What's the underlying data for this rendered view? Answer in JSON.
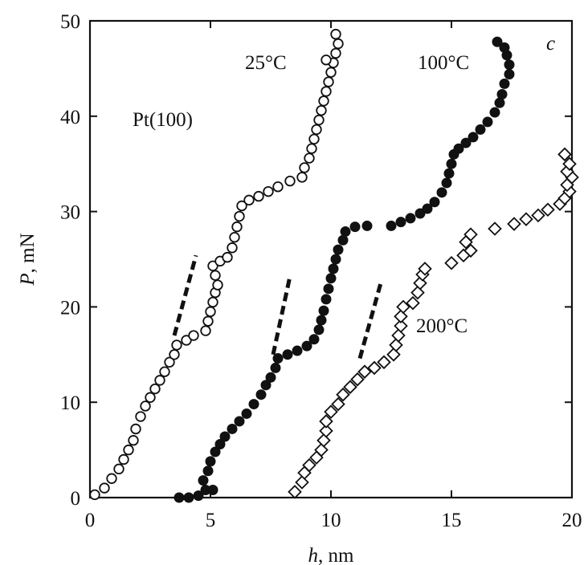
{
  "chart_data": {
    "type": "scatter",
    "panel_label": "c",
    "xlabel": {
      "symbol": "h",
      "unit": ", nm"
    },
    "ylabel": {
      "symbol": "P",
      "unit": ", mN"
    },
    "xlim": [
      0,
      20
    ],
    "ylim": [
      0,
      50
    ],
    "x_ticks": [
      "0",
      "5",
      "10",
      "15",
      "20"
    ],
    "y_ticks": [
      "0",
      "10",
      "20",
      "30",
      "40",
      "50"
    ],
    "grid": false,
    "annotations": {
      "material": "Pt(100)",
      "t25": "25°C",
      "t100": "100°C",
      "t200": "200°C"
    },
    "series": [
      {
        "label": "25°C",
        "marker": "open-circle",
        "points": [
          [
            0.2,
            0.3
          ],
          [
            0.6,
            1.0
          ],
          [
            0.9,
            2.0
          ],
          [
            1.2,
            3.0
          ],
          [
            1.4,
            4.0
          ],
          [
            1.6,
            5.0
          ],
          [
            1.8,
            6.0
          ],
          [
            1.9,
            7.2
          ],
          [
            2.1,
            8.5
          ],
          [
            2.3,
            9.6
          ],
          [
            2.5,
            10.5
          ],
          [
            2.7,
            11.4
          ],
          [
            2.9,
            12.3
          ],
          [
            3.1,
            13.2
          ],
          [
            3.3,
            14.2
          ],
          [
            3.5,
            15.0
          ],
          [
            3.6,
            16.0
          ],
          [
            4.0,
            16.5
          ],
          [
            4.3,
            17.0
          ],
          [
            4.8,
            17.5
          ],
          [
            4.9,
            18.5
          ],
          [
            5.0,
            19.5
          ],
          [
            5.1,
            20.5
          ],
          [
            5.2,
            21.5
          ],
          [
            5.3,
            22.3
          ],
          [
            5.2,
            23.3
          ],
          [
            5.1,
            24.3
          ],
          [
            5.4,
            24.8
          ],
          [
            5.7,
            25.2
          ],
          [
            5.9,
            26.2
          ],
          [
            6.0,
            27.3
          ],
          [
            6.1,
            28.4
          ],
          [
            6.2,
            29.5
          ],
          [
            6.3,
            30.6
          ],
          [
            6.6,
            31.2
          ],
          [
            7.0,
            31.6
          ],
          [
            7.4,
            32.1
          ],
          [
            7.8,
            32.6
          ],
          [
            8.3,
            33.2
          ],
          [
            8.8,
            33.6
          ],
          [
            8.9,
            34.6
          ],
          [
            9.1,
            35.6
          ],
          [
            9.2,
            36.6
          ],
          [
            9.3,
            37.6
          ],
          [
            9.4,
            38.6
          ],
          [
            9.5,
            39.6
          ],
          [
            9.6,
            40.6
          ],
          [
            9.7,
            41.6
          ],
          [
            9.8,
            42.6
          ],
          [
            9.9,
            43.6
          ],
          [
            10.0,
            44.6
          ],
          [
            10.1,
            45.6
          ],
          [
            9.8,
            45.9
          ],
          [
            10.2,
            46.6
          ],
          [
            10.3,
            47.6
          ],
          [
            10.2,
            48.6
          ]
        ],
        "dashed_line": [
          [
            3.5,
            17.0
          ],
          [
            4.4,
            25.4
          ]
        ]
      },
      {
        "label": "100°C",
        "marker": "filled-circle",
        "points": [
          [
            3.7,
            0.0
          ],
          [
            4.1,
            0.0
          ],
          [
            4.5,
            0.2
          ],
          [
            4.8,
            0.8
          ],
          [
            5.1,
            0.8
          ],
          [
            4.7,
            1.8
          ],
          [
            4.9,
            2.8
          ],
          [
            5.0,
            3.8
          ],
          [
            5.2,
            4.8
          ],
          [
            5.4,
            5.6
          ],
          [
            5.6,
            6.4
          ],
          [
            5.9,
            7.2
          ],
          [
            6.2,
            8.0
          ],
          [
            6.5,
            8.8
          ],
          [
            6.8,
            9.8
          ],
          [
            7.1,
            10.8
          ],
          [
            7.3,
            11.8
          ],
          [
            7.5,
            12.6
          ],
          [
            7.7,
            13.6
          ],
          [
            7.8,
            14.6
          ],
          [
            8.2,
            15.0
          ],
          [
            8.6,
            15.4
          ],
          [
            9.0,
            15.9
          ],
          [
            9.3,
            16.6
          ],
          [
            9.5,
            17.6
          ],
          [
            9.6,
            18.6
          ],
          [
            9.7,
            19.6
          ],
          [
            9.8,
            20.8
          ],
          [
            9.9,
            21.9
          ],
          [
            10.0,
            23.0
          ],
          [
            10.1,
            24.0
          ],
          [
            10.2,
            25.0
          ],
          [
            10.3,
            26.0
          ],
          [
            10.5,
            27.0
          ],
          [
            10.6,
            27.9
          ],
          [
            11.0,
            28.4
          ],
          [
            11.5,
            28.5
          ],
          [
            12.5,
            28.5
          ],
          [
            12.9,
            28.9
          ],
          [
            13.3,
            29.3
          ],
          [
            13.7,
            29.8
          ],
          [
            14.0,
            30.3
          ],
          [
            14.3,
            31.0
          ],
          [
            14.6,
            32.0
          ],
          [
            14.8,
            33.0
          ],
          [
            14.9,
            34.0
          ],
          [
            15.0,
            35.0
          ],
          [
            15.1,
            36.0
          ],
          [
            15.3,
            36.6
          ],
          [
            15.6,
            37.2
          ],
          [
            15.9,
            37.8
          ],
          [
            16.2,
            38.6
          ],
          [
            16.5,
            39.4
          ],
          [
            16.8,
            40.4
          ],
          [
            17.0,
            41.4
          ],
          [
            17.1,
            42.3
          ],
          [
            17.2,
            43.4
          ],
          [
            17.4,
            44.4
          ],
          [
            17.4,
            45.4
          ],
          [
            17.3,
            46.4
          ],
          [
            17.2,
            47.2
          ],
          [
            16.9,
            47.8
          ]
        ],
        "dashed_line": [
          [
            7.6,
            15.0
          ],
          [
            8.3,
            23.2
          ]
        ]
      },
      {
        "label": "200°C",
        "marker": "open-diamond",
        "points": [
          [
            8.5,
            0.6
          ],
          [
            8.8,
            1.6
          ],
          [
            8.9,
            2.6
          ],
          [
            9.1,
            3.4
          ],
          [
            9.4,
            4.2
          ],
          [
            9.6,
            5.0
          ],
          [
            9.7,
            6.0
          ],
          [
            9.8,
            7.0
          ],
          [
            9.8,
            8.0
          ],
          [
            10.0,
            9.0
          ],
          [
            10.3,
            9.8
          ],
          [
            10.5,
            10.8
          ],
          [
            10.8,
            11.6
          ],
          [
            11.1,
            12.4
          ],
          [
            11.4,
            13.2
          ],
          [
            11.8,
            13.6
          ],
          [
            12.2,
            14.2
          ],
          [
            12.6,
            15.0
          ],
          [
            12.7,
            16.0
          ],
          [
            12.8,
            17.0
          ],
          [
            12.9,
            18.0
          ],
          [
            12.9,
            19.0
          ],
          [
            13.0,
            20.0
          ],
          [
            13.4,
            20.4
          ],
          [
            13.6,
            21.5
          ],
          [
            13.7,
            22.5
          ],
          [
            13.8,
            23.4
          ],
          [
            13.9,
            24.0
          ],
          [
            15.0,
            24.6
          ],
          [
            15.5,
            25.4
          ],
          [
            15.8,
            25.9
          ],
          [
            15.6,
            26.8
          ],
          [
            15.8,
            27.6
          ],
          [
            16.8,
            28.2
          ],
          [
            17.6,
            28.7
          ],
          [
            18.1,
            29.2
          ],
          [
            18.6,
            29.6
          ],
          [
            19.0,
            30.2
          ],
          [
            19.5,
            30.8
          ],
          [
            19.7,
            31.4
          ],
          [
            19.9,
            32.1
          ],
          [
            19.8,
            32.8
          ],
          [
            20.0,
            33.6
          ],
          [
            19.8,
            34.2
          ],
          [
            19.9,
            35.0
          ],
          [
            19.7,
            36.0
          ]
        ],
        "dashed_line": [
          [
            11.2,
            14.6
          ],
          [
            12.1,
            22.8
          ]
        ]
      }
    ]
  }
}
